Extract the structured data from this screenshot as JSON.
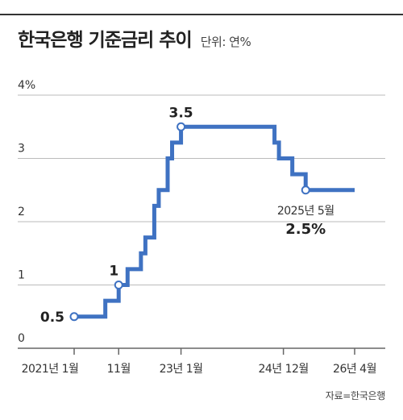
{
  "header": {
    "title": "한국은행 기준금리 추이",
    "unit": "단위: 연%"
  },
  "source": "자료=한국은행",
  "colors": {
    "line": "#3f72c2",
    "grid": "#bbbbbb",
    "axis": "#666666",
    "rule": "#333333"
  },
  "chart_data": {
    "type": "line",
    "title": "한국은행 기준금리 추이",
    "ylabel": "",
    "xlabel": "",
    "ylim": [
      0,
      4
    ],
    "y_ticks": [
      "0",
      "1",
      "2",
      "3",
      "4%"
    ],
    "x_ticks": [
      "2021년 1월",
      "11월",
      "23년 1월",
      "24년 12월",
      "26년 4월"
    ],
    "grid": true,
    "series": [
      {
        "x": [
          "2021-01",
          "2021-08",
          "2021-11",
          "2022-01",
          "2022-04",
          "2022-05",
          "2022-07",
          "2022-08",
          "2022-10",
          "2022-11",
          "2023-01",
          "2024-10",
          "2024-11",
          "2025-02",
          "2025-05",
          "2026-04"
        ],
        "values": [
          0.5,
          0.75,
          1.0,
          1.25,
          1.5,
          1.75,
          2.25,
          2.5,
          3.0,
          3.25,
          3.5,
          3.25,
          3.0,
          2.75,
          2.5,
          2.5
        ]
      }
    ],
    "annotations": [
      {
        "label": "0.5"
      },
      {
        "label": "1"
      },
      {
        "label": "3.5"
      },
      {
        "date": "2025년 5월",
        "value": "2.5%"
      }
    ]
  }
}
